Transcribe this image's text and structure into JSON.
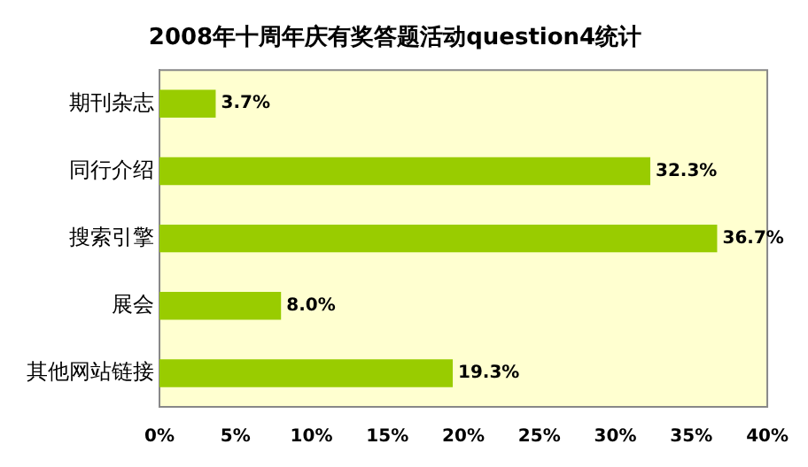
{
  "chart_data": {
    "type": "bar",
    "orientation": "horizontal",
    "title": "2008年十周年庆有奖答题活动question4统计",
    "categories": [
      "期刊杂志",
      "同行介绍",
      "搜索引擎",
      "展会",
      "其他网站链接"
    ],
    "values": [
      3.7,
      32.3,
      36.7,
      8.0,
      19.3
    ],
    "value_labels": [
      "3.7%",
      "32.3%",
      "36.7%",
      "8.0%",
      "19.3%"
    ],
    "color": "#99cc00",
    "xlim": [
      0,
      40
    ],
    "xticks": [
      {
        "value": 0,
        "label": "0%"
      },
      {
        "value": 5,
        "label": "5%"
      },
      {
        "value": 10,
        "label": "10%"
      },
      {
        "value": 15,
        "label": "15%"
      },
      {
        "value": 20,
        "label": "20%"
      },
      {
        "value": 25,
        "label": "25%"
      },
      {
        "value": 30,
        "label": "30%"
      },
      {
        "value": 35,
        "label": "35%"
      },
      {
        "value": 40,
        "label": "40%"
      }
    ],
    "grid": false,
    "legend": false
  }
}
